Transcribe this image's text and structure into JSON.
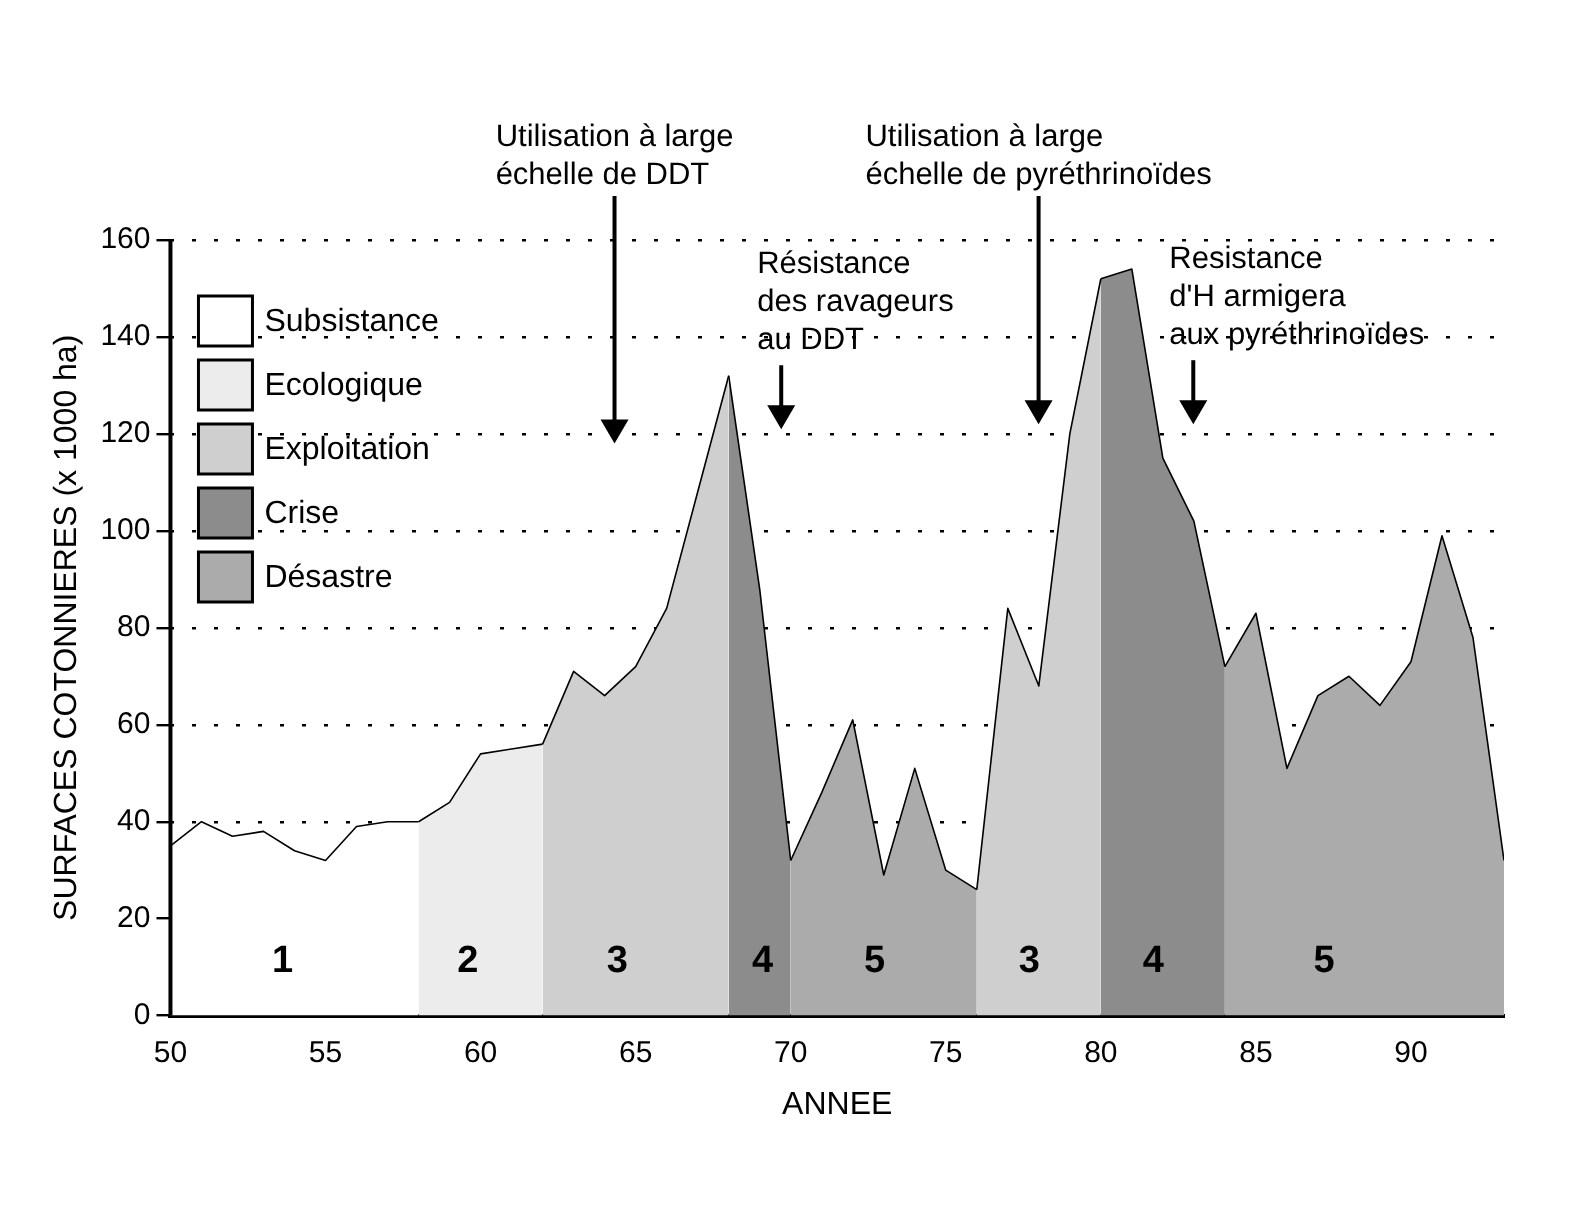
{
  "chart_data": {
    "type": "area",
    "xlabel": "ANNEE",
    "ylabel": "SURFACES COTONNIERES (x 1000 ha)",
    "xlim": [
      50,
      93
    ],
    "xticks": [
      50,
      55,
      60,
      65,
      70,
      75,
      80,
      85,
      90
    ],
    "ylim": [
      0,
      160
    ],
    "yticks": [
      0,
      20,
      40,
      60,
      80,
      100,
      120,
      140,
      160
    ],
    "grid": "y",
    "legend": "top left",
    "series": [
      {
        "name": "Subsistance",
        "color": "#ffffff",
        "x": [
          50,
          51,
          52,
          53,
          54,
          55,
          56,
          57,
          58
        ],
        "values": [
          35,
          40,
          37,
          38,
          34,
          32,
          39,
          40,
          40
        ]
      },
      {
        "name": "Ecologique",
        "color": "#ececec",
        "x": [
          58,
          59,
          60,
          61,
          62
        ],
        "values": [
          40,
          44,
          54,
          55,
          56
        ]
      },
      {
        "name": "Exploitation",
        "color": "#cfcfcf",
        "x": [
          62,
          63,
          64,
          65,
          66,
          67,
          68
        ],
        "values": [
          56,
          71,
          66,
          72,
          84,
          108,
          132
        ]
      },
      {
        "name": "Crise",
        "color": "#8c8c8c",
        "x": [
          68,
          69,
          70
        ],
        "values": [
          132,
          88,
          32
        ]
      },
      {
        "name": "Désastre",
        "color": "#ababab",
        "x": [
          70,
          71,
          72,
          73,
          74,
          75,
          76
        ],
        "values": [
          32,
          46,
          61,
          29,
          51,
          30,
          26
        ]
      },
      {
        "color": "#cfcfcf",
        "x": [
          76,
          77,
          78,
          79,
          80
        ],
        "values": [
          26,
          84,
          68,
          120,
          152
        ]
      },
      {
        "color": "#8c8c8c",
        "x": [
          80,
          81,
          82,
          83,
          84
        ],
        "values": [
          152,
          154,
          115,
          102,
          72
        ]
      },
      {
        "color": "#ababab",
        "x": [
          84,
          85,
          86,
          87,
          88,
          89,
          90,
          91,
          92,
          93
        ],
        "values": [
          72,
          83,
          51,
          66,
          70,
          64,
          73,
          99,
          78,
          32
        ]
      }
    ],
    "annotations": [
      "Utilisation à large\néchelle de DDT",
      "Résistance\ndes ravageurs\nau DDT",
      "Utilisation à large\néchelle de pyréthrinoïdes",
      "Resistance\nd'H armigera\naux pyréthrinoïdes",
      "1",
      "2",
      "3",
      "4",
      "5",
      "3",
      "4",
      "5"
    ]
  }
}
